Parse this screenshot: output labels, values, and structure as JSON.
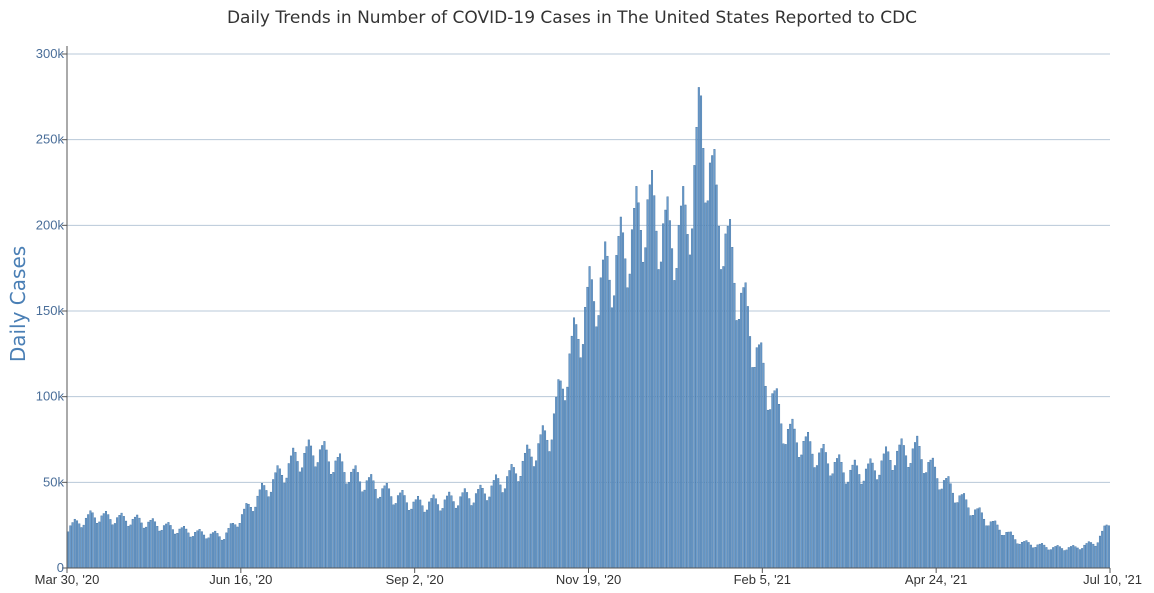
{
  "chart_data": {
    "type": "bar",
    "title": "Daily Trends in Number of COVID-19 Cases in The United States Reported to CDC",
    "xlabel": "",
    "ylabel": "Daily Cases",
    "x_start": "2020-03-30",
    "x_end": "2021-07-10",
    "x_tick_labels": [
      "Mar 30, '20",
      "Jun 16, '20",
      "Sep 2, '20",
      "Nov 19, '20",
      "Feb 5, '21",
      "Apr 24, '21",
      "Jul 10, '21"
    ],
    "y_ticks": [
      0,
      50000,
      100000,
      150000,
      200000,
      250000,
      300000
    ],
    "y_tick_labels": [
      "0",
      "50k",
      "100k",
      "150k",
      "200k",
      "250k",
      "300k"
    ],
    "ylim": [
      0,
      300000
    ],
    "grid": true,
    "bar_color": "#6b9ccc",
    "bar_edge_color": "#3d6e9e",
    "grid_color": "#b8c8d8",
    "weekly_profile": [
      0.85,
      0.88,
      1.0,
      1.05,
      1.1,
      1.04,
      0.95
    ],
    "trend_anchors": {
      "dates": [
        "2020-03-30",
        "2020-04-10",
        "2020-05-01",
        "2020-05-25",
        "2020-06-08",
        "2020-06-25",
        "2020-07-10",
        "2020-07-20",
        "2020-08-05",
        "2020-08-20",
        "2020-09-02",
        "2020-09-12",
        "2020-10-01",
        "2020-10-15",
        "2020-11-01",
        "2020-11-10",
        "2020-11-19",
        "2020-12-05",
        "2020-12-15",
        "2020-12-25",
        "2021-01-02",
        "2021-01-08",
        "2021-01-15",
        "2021-01-25",
        "2021-02-05",
        "2021-02-15",
        "2021-03-01",
        "2021-03-15",
        "2021-03-25",
        "2021-04-05",
        "2021-04-15",
        "2021-04-24",
        "2021-05-08",
        "2021-05-20",
        "2021-06-01",
        "2021-06-15",
        "2021-06-25",
        "2021-07-04",
        "2021-07-10"
      ],
      "values": [
        24000,
        31000,
        28000,
        21000,
        19000,
        45000,
        65000,
        70000,
        55000,
        45000,
        38000,
        39000,
        44000,
        55000,
        80000,
        125000,
        160000,
        190000,
        215000,
        195000,
        205000,
        265000,
        215000,
        165000,
        115000,
        82000,
        68000,
        57000,
        58000,
        68000,
        70000,
        55000,
        37000,
        25000,
        15000,
        12000,
        12000,
        15000,
        26000
      ]
    }
  }
}
